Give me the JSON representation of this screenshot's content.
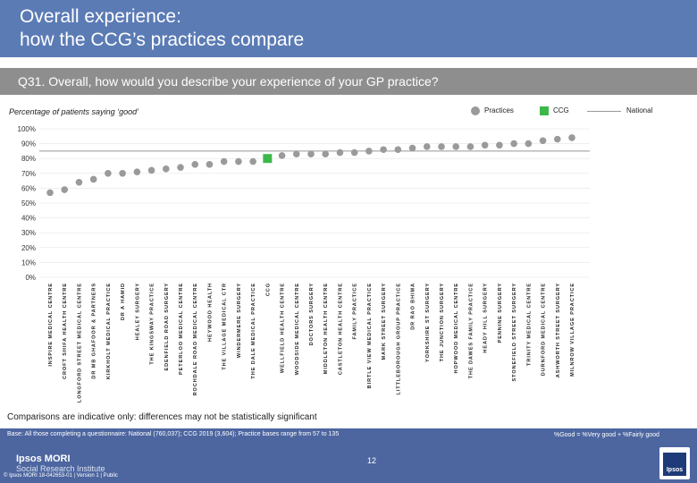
{
  "title": {
    "line1": "Overall experience:",
    "line2": "how the CCG’s practices compare"
  },
  "question": "Q31. Overall, how would you describe your experience of your GP practice?",
  "subtitle": "Percentage of patients saying ‘good’",
  "legend": {
    "practices": "Practices",
    "ccg": "CCG",
    "national": "National"
  },
  "colors": {
    "header": "#5b7bb5",
    "practice_dot": "#9a9a9a",
    "ccg_marker": "#3cb84a",
    "national_line": "#999999",
    "footer": "#4d66a0"
  },
  "chart_data": {
    "type": "scatter",
    "title": "Q31. Overall, how would you describe your experience of your GP practice?",
    "ylabel": "Percentage of patients saying ‘good’",
    "ylim": [
      0,
      100
    ],
    "yticks": [
      "0%",
      "10%",
      "20%",
      "30%",
      "40%",
      "50%",
      "60%",
      "70%",
      "80%",
      "90%",
      "100%"
    ],
    "national": 85,
    "categories": [
      "INSPIRE MEDICAL CENTRE",
      "CROFT SHIFA HEALTH CENTRE",
      "LONGFORD STREET MEDICAL CENTRE",
      "DR MB GHAFOOR & PARTNERS",
      "KIRKHOLT MEDICAL PRACTICE",
      "DR A HAMID",
      "HEALEY SURGERY",
      "THE KINGSWAY PRACTICE",
      "EDENFIELD ROAD SURGERY",
      "PETERLOO MEDICAL CENTRE",
      "ROCHDALE ROAD MEDICAL CENTRE",
      "HEYWOOD HEALTH",
      "THE VILLAGE MEDICAL CTR",
      "WINDERMERE SURGERY",
      "THE DALE MEDICAL PRACTICE",
      "CCG",
      "WELLFIELD HEALTH CENTRE",
      "WOODSIDE MEDICAL CENTRE",
      "DOCTORS SURGERY",
      "MIDDLETON HEALTH CENTRE",
      "CASTLETON HEALTH CENTRE",
      "FAMILY PRACTICE",
      "BIRTLE VIEW MEDICAL PRACTICE",
      "MARK STREET SURGERY",
      "LITTLEBOROUGH GROUP PRACTICE",
      "DR RAO BHIMA",
      "YORKSHIRE ST SURGERY",
      "THE JUNCTION SURGERY",
      "HOPWOOD MEDICAL CENTRE",
      "THE DAWES FAMILY PRACTICE",
      "HEADY HILL SURGERY",
      "PENNINE SURGERY",
      "STONEFIELD STREET SURGERY",
      "TRINITY MEDICAL CENTRE",
      "DURNFORD MEDICAL CENTRE",
      "ASHWORTH STREET SURGERY",
      "MILNROW VILLAGE PRACTICE"
    ],
    "values": [
      57,
      59,
      64,
      66,
      70,
      70,
      71,
      72,
      73,
      74,
      76,
      76,
      78,
      78,
      78,
      80,
      82,
      83,
      83,
      83,
      84,
      84,
      85,
      86,
      86,
      87,
      88,
      88,
      88,
      88,
      89,
      89,
      90,
      90,
      92,
      93,
      94
    ],
    "ccg_index": 15,
    "legend_position": "top-right"
  },
  "note": "Comparisons are indicative only: differences may not be statistically significant",
  "footer": {
    "base": "Base: All those completing a questionnaire: National (760,037); CCG 2019 (3,604); Practice bases range from 57 to 135",
    "formula": "%Good = %Very good + %Fairly good",
    "brand1": "Ipsos MORI",
    "brand2": "Social Research Institute",
    "copyright": "© Ipsos MORI     18-042653-01 | Version 1 | Public",
    "page": "12",
    "logo": "Ipsos"
  }
}
